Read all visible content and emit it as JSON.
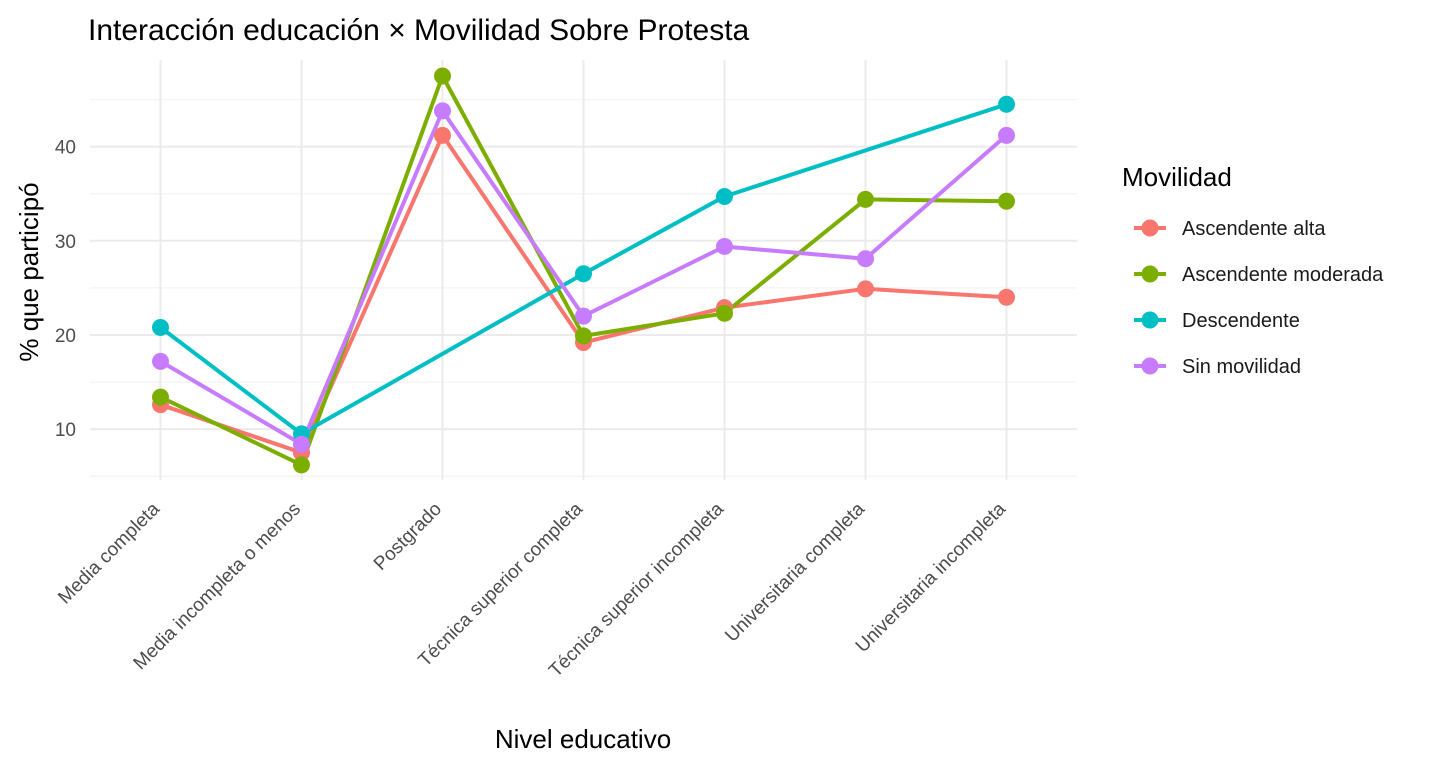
{
  "chart_data": {
    "type": "line",
    "title": "Interacción educación × Movilidad Sobre Protesta",
    "xlabel": "Nivel educativo",
    "ylabel": "% que participó",
    "categories": [
      "Media completa",
      "Media incompleta o menos",
      "Postgrado",
      "Técnica superior completa",
      "Técnica superior incompleta",
      "Universitaria completa",
      "Universitaria incompleta"
    ],
    "ylim": [
      4.6,
      49.2
    ],
    "yticks": [
      10,
      20,
      30,
      40
    ],
    "grid": true,
    "legend": {
      "title": "Movilidad",
      "position": "right"
    },
    "series": [
      {
        "name": "Ascendente alta",
        "color": "#F8766D",
        "values": [
          12.6,
          7.5,
          41.2,
          19.2,
          22.9,
          24.9,
          24.0
        ]
      },
      {
        "name": "Ascendente moderada",
        "color": "#7CAE00",
        "values": [
          13.4,
          6.2,
          47.5,
          19.9,
          22.3,
          34.4,
          34.2
        ]
      },
      {
        "name": "Descendente",
        "color": "#00BFC4",
        "values": [
          20.8,
          9.5,
          null,
          26.5,
          34.7,
          null,
          44.5
        ]
      },
      {
        "name": "Sin movilidad",
        "color": "#C77CFF",
        "values": [
          17.2,
          8.4,
          43.8,
          22.0,
          29.4,
          28.1,
          41.2
        ]
      }
    ]
  }
}
